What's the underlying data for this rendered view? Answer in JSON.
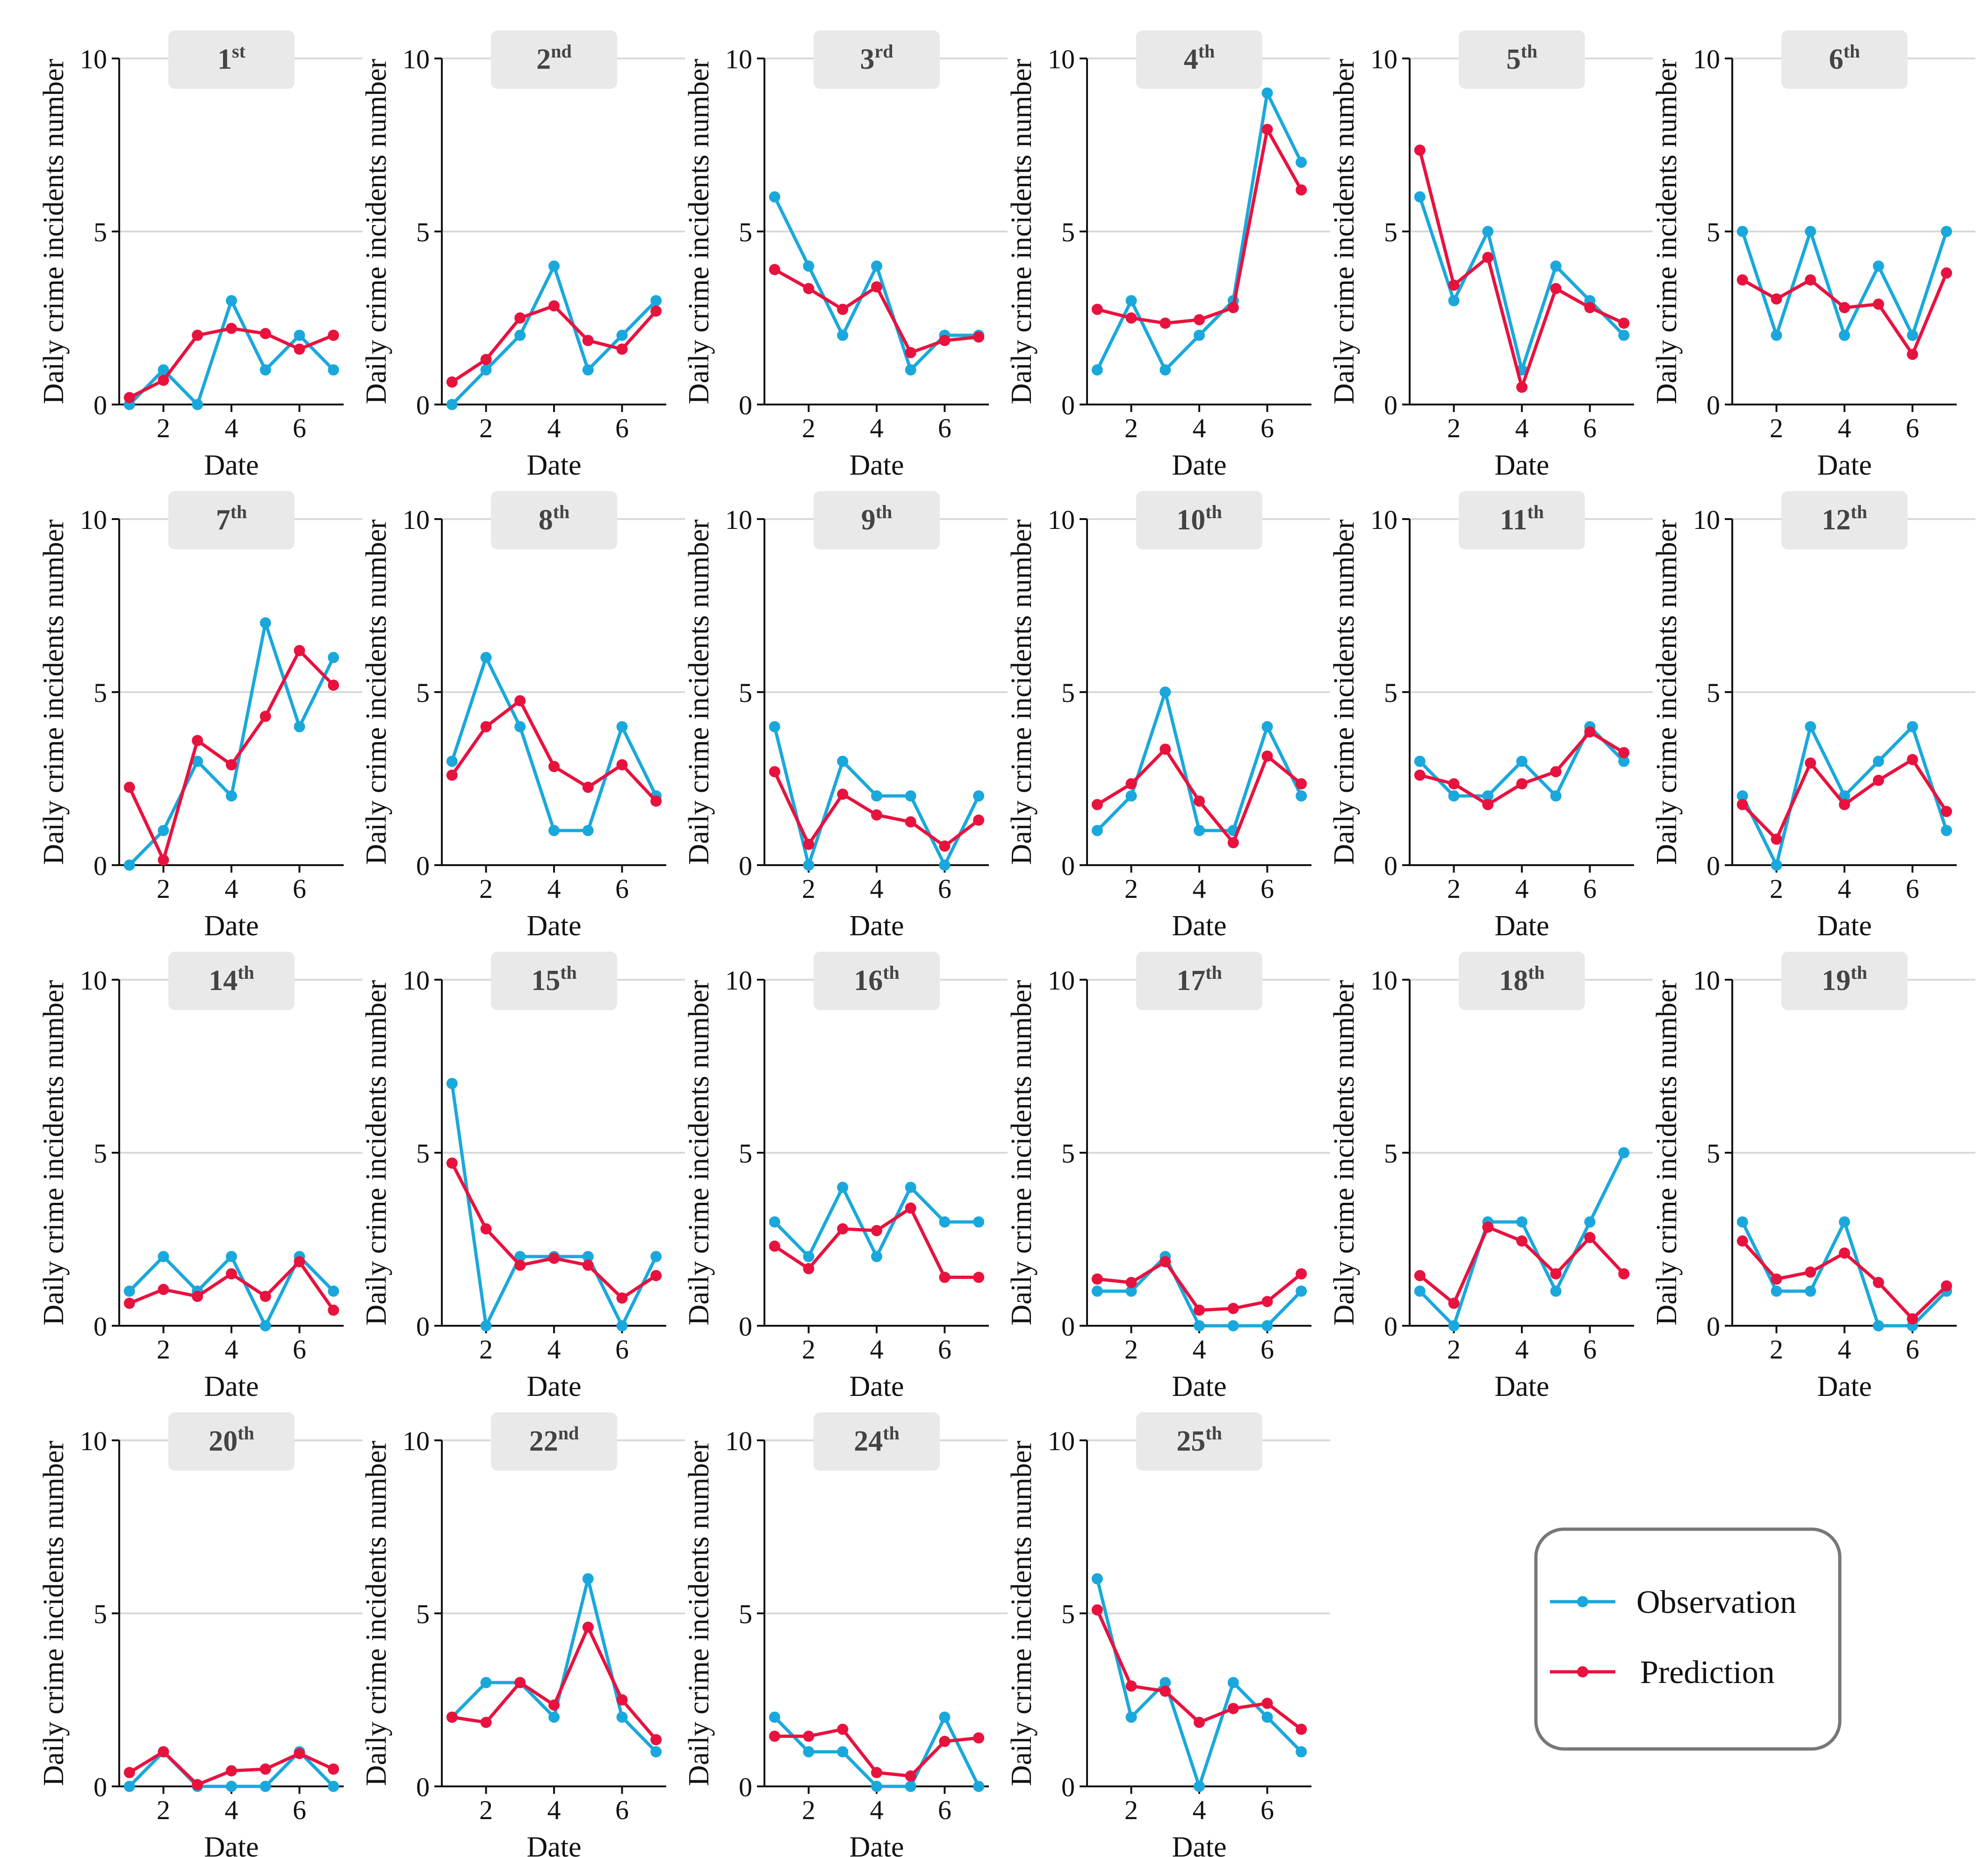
{
  "figure": {
    "xlabel": "Date",
    "ylabel": "Daily crime incidents number",
    "ylim": [
      0,
      10
    ],
    "xlim": [
      0.7,
      7.3
    ],
    "yticks": [
      "0",
      "5",
      "10"
    ],
    "xticks": [
      "2",
      "4",
      "6"
    ],
    "xtick_values": [
      2,
      4,
      6
    ],
    "ytick_values": [
      0,
      5,
      10
    ],
    "colors": {
      "observation": "#1aa8dc",
      "prediction": "#e8123f",
      "grid": "#d9d9d9",
      "title_box": "#e9e9e9",
      "title_text": "#444444",
      "legend_border": "#777777"
    }
  },
  "legend": {
    "observation_label": "Observation",
    "prediction_label": "Prediction"
  },
  "chart_data": [
    {
      "type": "line",
      "title_num": "1",
      "title_sup": "st",
      "x": [
        1,
        2,
        3,
        4,
        5,
        6,
        7
      ],
      "xlabel": "Date",
      "ylabel": "Daily crime incidents number",
      "ylim": [
        0,
        10
      ],
      "series": [
        {
          "name": "Observation",
          "values": [
            0,
            1,
            0,
            3,
            1,
            2,
            1
          ]
        },
        {
          "name": "Prediction",
          "values": [
            0.2,
            0.7,
            2.0,
            2.2,
            2.05,
            1.6,
            2.0
          ]
        }
      ]
    },
    {
      "type": "line",
      "title_num": "2",
      "title_sup": "nd",
      "x": [
        1,
        2,
        3,
        4,
        5,
        6,
        7
      ],
      "xlabel": "Date",
      "ylabel": "Daily crime incidents number",
      "ylim": [
        0,
        10
      ],
      "series": [
        {
          "name": "Observation",
          "values": [
            0,
            1,
            2,
            4,
            1,
            2,
            3
          ]
        },
        {
          "name": "Prediction",
          "values": [
            0.65,
            1.3,
            2.5,
            2.85,
            1.85,
            1.6,
            2.7
          ]
        }
      ]
    },
    {
      "type": "line",
      "title_num": "3",
      "title_sup": "rd",
      "x": [
        1,
        2,
        3,
        4,
        5,
        6,
        7
      ],
      "xlabel": "Date",
      "ylabel": "Daily crime incidents number",
      "ylim": [
        0,
        10
      ],
      "series": [
        {
          "name": "Observation",
          "values": [
            6,
            4,
            2,
            4,
            1,
            2,
            2
          ]
        },
        {
          "name": "Prediction",
          "values": [
            3.9,
            3.35,
            2.75,
            3.4,
            1.5,
            1.85,
            1.95
          ]
        }
      ]
    },
    {
      "type": "line",
      "title_num": "4",
      "title_sup": "th",
      "x": [
        1,
        2,
        3,
        4,
        5,
        6,
        7
      ],
      "xlabel": "Date",
      "ylabel": "Daily crime incidents number",
      "ylim": [
        0,
        10
      ],
      "series": [
        {
          "name": "Observation",
          "values": [
            1,
            3,
            1,
            2,
            3,
            9,
            7
          ]
        },
        {
          "name": "Prediction",
          "values": [
            2.75,
            2.5,
            2.35,
            2.45,
            2.8,
            7.95,
            6.2
          ]
        }
      ]
    },
    {
      "type": "line",
      "title_num": "5",
      "title_sup": "th",
      "x": [
        1,
        2,
        3,
        4,
        5,
        6,
        7
      ],
      "xlabel": "Date",
      "ylabel": "Daily crime incidents number",
      "ylim": [
        0,
        10
      ],
      "series": [
        {
          "name": "Observation",
          "values": [
            6,
            3,
            5,
            1,
            4,
            3,
            2
          ]
        },
        {
          "name": "Prediction",
          "values": [
            7.35,
            3.45,
            4.25,
            0.5,
            3.35,
            2.8,
            2.35
          ]
        }
      ]
    },
    {
      "type": "line",
      "title_num": "6",
      "title_sup": "th",
      "x": [
        1,
        2,
        3,
        4,
        5,
        6,
        7
      ],
      "xlabel": "Date",
      "ylabel": "Daily crime incidents number",
      "ylim": [
        0,
        10
      ],
      "series": [
        {
          "name": "Observation",
          "values": [
            5,
            2,
            5,
            2,
            4,
            2,
            5
          ]
        },
        {
          "name": "Prediction",
          "values": [
            3.6,
            3.05,
            3.6,
            2.8,
            2.9,
            1.45,
            3.8
          ]
        }
      ]
    },
    {
      "type": "line",
      "title_num": "7",
      "title_sup": "th",
      "x": [
        1,
        2,
        3,
        4,
        5,
        6,
        7
      ],
      "xlabel": "Date",
      "ylabel": "Daily crime incidents number",
      "ylim": [
        0,
        10
      ],
      "series": [
        {
          "name": "Observation",
          "values": [
            0,
            1,
            3,
            2,
            7,
            4,
            6
          ]
        },
        {
          "name": "Prediction",
          "values": [
            2.25,
            0.15,
            3.6,
            2.9,
            4.3,
            6.2,
            5.2
          ]
        }
      ]
    },
    {
      "type": "line",
      "title_num": "8",
      "title_sup": "th",
      "x": [
        1,
        2,
        3,
        4,
        5,
        6,
        7
      ],
      "xlabel": "Date",
      "ylabel": "Daily crime incidents number",
      "ylim": [
        0,
        10
      ],
      "series": [
        {
          "name": "Observation",
          "values": [
            3,
            6,
            4,
            1,
            1,
            4,
            2
          ]
        },
        {
          "name": "Prediction",
          "values": [
            2.6,
            4.0,
            4.75,
            2.85,
            2.25,
            2.9,
            1.85
          ]
        }
      ]
    },
    {
      "type": "line",
      "title_num": "9",
      "title_sup": "th",
      "x": [
        1,
        2,
        3,
        4,
        5,
        6,
        7
      ],
      "xlabel": "Date",
      "ylabel": "Daily crime incidents number",
      "ylim": [
        0,
        10
      ],
      "series": [
        {
          "name": "Observation",
          "values": [
            4,
            0,
            3,
            2,
            2,
            0,
            2
          ]
        },
        {
          "name": "Prediction",
          "values": [
            2.7,
            0.6,
            2.05,
            1.45,
            1.25,
            0.55,
            1.3
          ]
        }
      ]
    },
    {
      "type": "line",
      "title_num": "10",
      "title_sup": "th",
      "x": [
        1,
        2,
        3,
        4,
        5,
        6,
        7
      ],
      "xlabel": "Date",
      "ylabel": "Daily crime incidents number",
      "ylim": [
        0,
        10
      ],
      "series": [
        {
          "name": "Observation",
          "values": [
            1,
            2,
            5,
            1,
            1,
            4,
            2
          ]
        },
        {
          "name": "Prediction",
          "values": [
            1.75,
            2.35,
            3.35,
            1.85,
            0.65,
            3.15,
            2.35
          ]
        }
      ]
    },
    {
      "type": "line",
      "title_num": "11",
      "title_sup": "th",
      "x": [
        1,
        2,
        3,
        4,
        5,
        6,
        7
      ],
      "xlabel": "Date",
      "ylabel": "Daily crime incidents number",
      "ylim": [
        0,
        10
      ],
      "series": [
        {
          "name": "Observation",
          "values": [
            3,
            2,
            2,
            3,
            2,
            4,
            3
          ]
        },
        {
          "name": "Prediction",
          "values": [
            2.6,
            2.35,
            1.75,
            2.35,
            2.7,
            3.85,
            3.25
          ]
        }
      ]
    },
    {
      "type": "line",
      "title_num": "12",
      "title_sup": "th",
      "x": [
        1,
        2,
        3,
        4,
        5,
        6,
        7
      ],
      "xlabel": "Date",
      "ylabel": "Daily crime incidents number",
      "ylim": [
        0,
        10
      ],
      "series": [
        {
          "name": "Observation",
          "values": [
            2,
            0,
            4,
            2,
            3,
            4,
            1
          ]
        },
        {
          "name": "Prediction",
          "values": [
            1.75,
            0.75,
            2.95,
            1.75,
            2.45,
            3.05,
            1.55
          ]
        }
      ]
    },
    {
      "type": "line",
      "title_num": "14",
      "title_sup": "th",
      "x": [
        1,
        2,
        3,
        4,
        5,
        6,
        7
      ],
      "xlabel": "Date",
      "ylabel": "Daily crime incidents number",
      "ylim": [
        0,
        10
      ],
      "series": [
        {
          "name": "Observation",
          "values": [
            1,
            2,
            1,
            2,
            0,
            2,
            1
          ]
        },
        {
          "name": "Prediction",
          "values": [
            0.65,
            1.05,
            0.85,
            1.5,
            0.85,
            1.85,
            0.45
          ]
        }
      ]
    },
    {
      "type": "line",
      "title_num": "15",
      "title_sup": "th",
      "x": [
        1,
        2,
        3,
        4,
        5,
        6,
        7
      ],
      "xlabel": "Date",
      "ylabel": "Daily crime incidents number",
      "ylim": [
        0,
        10
      ],
      "series": [
        {
          "name": "Observation",
          "values": [
            7,
            0,
            2,
            2,
            2,
            0,
            2
          ]
        },
        {
          "name": "Prediction",
          "values": [
            4.7,
            2.8,
            1.75,
            1.95,
            1.75,
            0.8,
            1.45
          ]
        }
      ]
    },
    {
      "type": "line",
      "title_num": "16",
      "title_sup": "th",
      "x": [
        1,
        2,
        3,
        4,
        5,
        6,
        7
      ],
      "xlabel": "Date",
      "ylabel": "Daily crime incidents number",
      "ylim": [
        0,
        10
      ],
      "series": [
        {
          "name": "Observation",
          "values": [
            3,
            2,
            4,
            2,
            4,
            3,
            3
          ]
        },
        {
          "name": "Prediction",
          "values": [
            2.3,
            1.65,
            2.8,
            2.75,
            3.4,
            1.4,
            1.4
          ]
        }
      ]
    },
    {
      "type": "line",
      "title_num": "17",
      "title_sup": "th",
      "x": [
        1,
        2,
        3,
        4,
        5,
        6,
        7
      ],
      "xlabel": "Date",
      "ylabel": "Daily crime incidents number",
      "ylim": [
        0,
        10
      ],
      "series": [
        {
          "name": "Observation",
          "values": [
            1,
            1,
            2,
            0,
            0,
            0,
            1
          ]
        },
        {
          "name": "Prediction",
          "values": [
            1.35,
            1.25,
            1.85,
            0.45,
            0.5,
            0.7,
            1.5
          ]
        }
      ]
    },
    {
      "type": "line",
      "title_num": "18",
      "title_sup": "th",
      "x": [
        1,
        2,
        3,
        4,
        5,
        6,
        7
      ],
      "xlabel": "Date",
      "ylabel": "Daily crime incidents number",
      "ylim": [
        0,
        10
      ],
      "series": [
        {
          "name": "Observation",
          "values": [
            1,
            0,
            3,
            3,
            1,
            3,
            5
          ]
        },
        {
          "name": "Prediction",
          "values": [
            1.45,
            0.65,
            2.85,
            2.45,
            1.5,
            2.55,
            1.5
          ]
        }
      ]
    },
    {
      "type": "line",
      "title_num": "19",
      "title_sup": "th",
      "x": [
        1,
        2,
        3,
        4,
        5,
        6,
        7
      ],
      "xlabel": "Date",
      "ylabel": "Daily crime incidents number",
      "ylim": [
        0,
        10
      ],
      "series": [
        {
          "name": "Observation",
          "values": [
            3,
            1,
            1,
            3,
            0,
            0,
            1
          ]
        },
        {
          "name": "Prediction",
          "values": [
            2.45,
            1.35,
            1.55,
            2.1,
            1.25,
            0.2,
            1.15
          ]
        }
      ]
    },
    {
      "type": "line",
      "title_num": "20",
      "title_sup": "th",
      "x": [
        1,
        2,
        3,
        4,
        5,
        6,
        7
      ],
      "xlabel": "Date",
      "ylabel": "Daily crime incidents number",
      "ylim": [
        0,
        10
      ],
      "series": [
        {
          "name": "Observation",
          "values": [
            0,
            1,
            0,
            0,
            0,
            1,
            0
          ]
        },
        {
          "name": "Prediction",
          "values": [
            0.4,
            1.0,
            0.05,
            0.45,
            0.5,
            0.95,
            0.5
          ]
        }
      ]
    },
    {
      "type": "line",
      "title_num": "22",
      "title_sup": "nd",
      "x": [
        1,
        2,
        3,
        4,
        5,
        6,
        7
      ],
      "xlabel": "Date",
      "ylabel": "Daily crime incidents number",
      "ylim": [
        0,
        10
      ],
      "series": [
        {
          "name": "Observation",
          "values": [
            2,
            3,
            3,
            2,
            6,
            2,
            1
          ]
        },
        {
          "name": "Prediction",
          "values": [
            2.0,
            1.85,
            3.0,
            2.35,
            4.6,
            2.5,
            1.35
          ]
        }
      ]
    },
    {
      "type": "line",
      "title_num": "24",
      "title_sup": "th",
      "x": [
        1,
        2,
        3,
        4,
        5,
        6,
        7
      ],
      "xlabel": "Date",
      "ylabel": "Daily crime incidents number",
      "ylim": [
        0,
        10
      ],
      "series": [
        {
          "name": "Observation",
          "values": [
            2,
            1,
            1,
            0,
            0,
            2,
            0
          ]
        },
        {
          "name": "Prediction",
          "values": [
            1.45,
            1.45,
            1.65,
            0.4,
            0.3,
            1.3,
            1.4
          ]
        }
      ]
    },
    {
      "type": "line",
      "title_num": "25",
      "title_sup": "th",
      "x": [
        1,
        2,
        3,
        4,
        5,
        6,
        7
      ],
      "xlabel": "Date",
      "ylabel": "Daily crime incidents number",
      "ylim": [
        0,
        10
      ],
      "series": [
        {
          "name": "Observation",
          "values": [
            6,
            2,
            3,
            0,
            3,
            2,
            1
          ]
        },
        {
          "name": "Prediction",
          "values": [
            5.1,
            2.9,
            2.75,
            1.85,
            2.25,
            2.4,
            1.65
          ]
        }
      ]
    }
  ]
}
